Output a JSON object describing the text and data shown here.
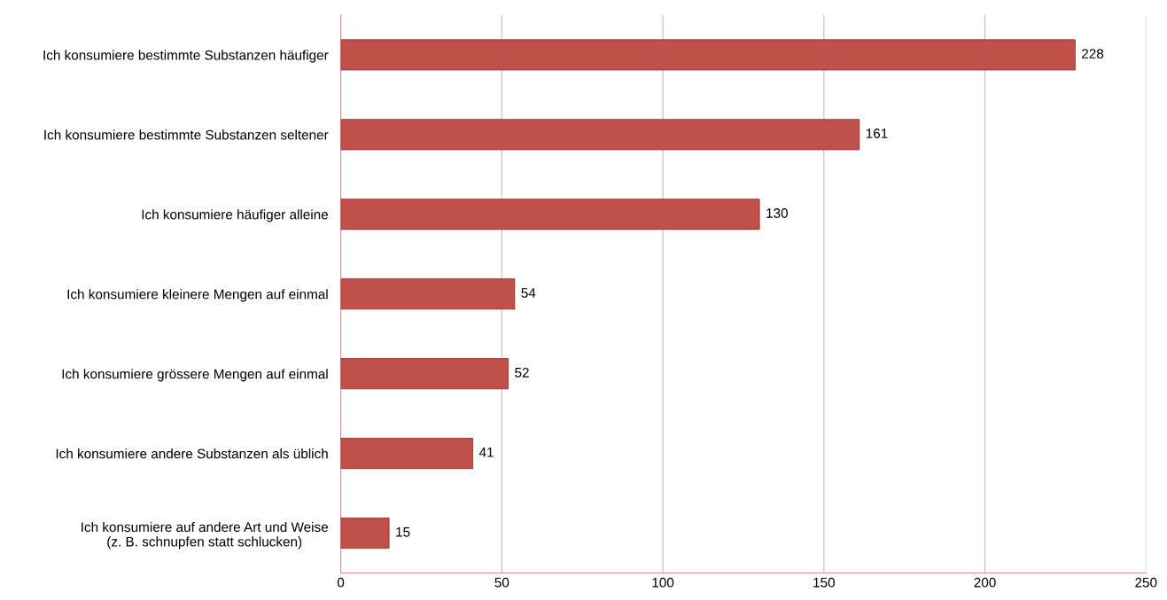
{
  "chart_data": {
    "type": "bar",
    "orientation": "horizontal",
    "categories": [
      "Ich konsumiere bestimmte Substanzen häufiger",
      "Ich konsumiere bestimmte Substanzen seltener",
      "Ich konsumiere häufiger alleine",
      "Ich konsumiere kleinere Mengen auf einmal",
      "Ich konsumiere grössere Mengen auf einmal",
      "Ich konsumiere andere Substanzen als üblich",
      "Ich konsumiere auf andere Art und Weise\n(z. B. schnupfen statt schlucken)"
    ],
    "values": [
      228,
      161,
      130,
      54,
      52,
      41,
      15
    ],
    "color": "#c0504a",
    "xlim": [
      0,
      250
    ],
    "xticks": [
      0,
      50,
      100,
      150,
      200,
      250
    ],
    "grid": "x",
    "data_labels": true
  }
}
